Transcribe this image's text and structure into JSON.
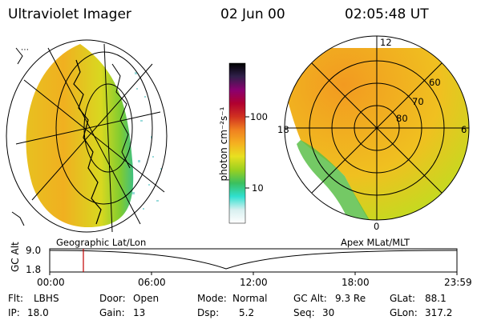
{
  "header": {
    "instrument": "Ultraviolet Imager",
    "date": "02 Jun 00",
    "time": "02:05:48 UT"
  },
  "colorbar": {
    "unit_label": "photon cm⁻²s⁻¹",
    "tick_100": "100",
    "tick_10": "10",
    "stops": [
      "#ffffff",
      "#d8f0f0",
      "#30e0d0",
      "#3ac060",
      "#9ad020",
      "#e8e020",
      "#f5b020",
      "#f08020",
      "#d03020",
      "#b00030",
      "#8a0070",
      "#30204a",
      "#000000"
    ]
  },
  "map_left": {
    "label": "Geographic Lat/Lon"
  },
  "map_right": {
    "label": "Apex MLat/MLT",
    "mlt_labels": {
      "top": "12",
      "left": "18",
      "right": "6",
      "bottom": "0"
    },
    "lat_labels": [
      "60",
      "70",
      "80"
    ]
  },
  "timeline": {
    "ylabel": "GC Alt",
    "y_top": "9.0",
    "y_bottom": "1.8",
    "x_ticks": [
      "00:00",
      "06:00",
      "12:00",
      "18:00",
      "23:59"
    ],
    "marker_color": "#c00000"
  },
  "info": {
    "flt_label": "Flt:",
    "flt_value": "LBHS",
    "door_label": "Door:",
    "door_value": "Open",
    "mode_label": "Mode:",
    "mode_value": "Normal",
    "gcalt_label": "GC Alt:",
    "gcalt_value": "9.3 Re",
    "glat_label": "GLat:",
    "glat_value": "88.1",
    "ip_label": "IP:",
    "ip_value": "18.0",
    "gain_label": "Gain:",
    "gain_value": "13",
    "dsp_label": "Dsp:",
    "dsp_value": "5.2",
    "seq_label": "Seq:",
    "seq_value": "30",
    "glon_label": "GLon:",
    "glon_value": "317.2"
  }
}
